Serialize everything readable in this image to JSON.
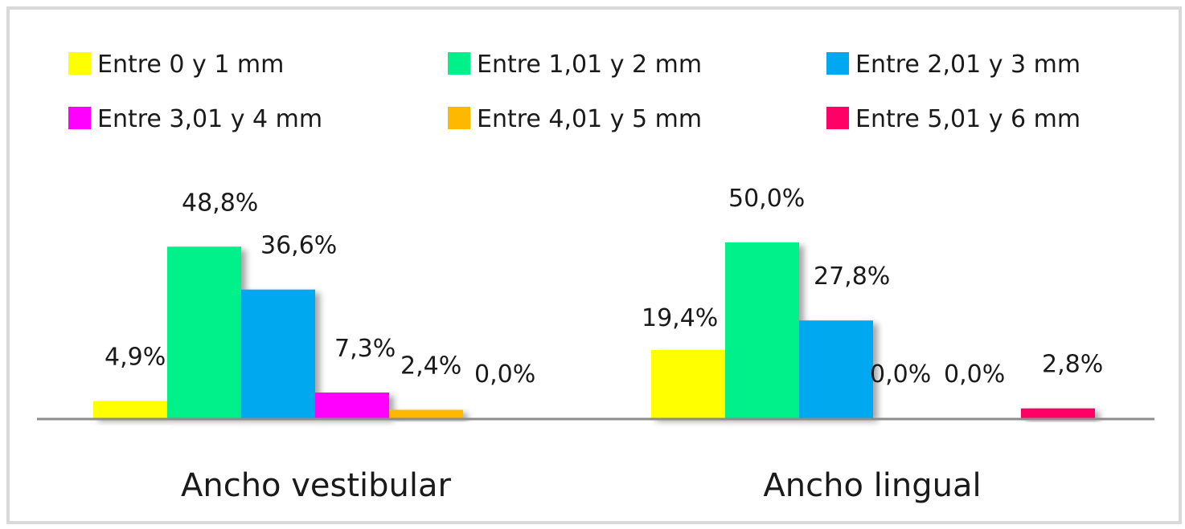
{
  "chart_data": {
    "type": "bar",
    "title": "",
    "xlabel": "",
    "ylabel": "",
    "ylim": [
      0,
      60
    ],
    "grid": false,
    "legend_position": "top",
    "categories": [
      "Ancho vestibular",
      "Ancho lingual"
    ],
    "series": [
      {
        "name": "Entre 0 y 1 mm",
        "color": "#ffff00",
        "values": [
          4.9,
          19.4
        ],
        "labels": [
          "4,9%",
          "19,4%"
        ]
      },
      {
        "name": "Entre 1,01 y 2 mm",
        "color": "#00f08a",
        "values": [
          48.8,
          50.0
        ],
        "labels": [
          "48,8%",
          "50,0%"
        ]
      },
      {
        "name": "Entre 2,01 y 3 mm",
        "color": "#00a8f0",
        "values": [
          36.6,
          27.8
        ],
        "labels": [
          "36,6%",
          "27,8%"
        ]
      },
      {
        "name": "Entre 3,01 y 4 mm",
        "color": "#ff00ff",
        "values": [
          7.3,
          0.0
        ],
        "labels": [
          "7,3%",
          "0,0%"
        ]
      },
      {
        "name": "Entre 4,01 y 5 mm",
        "color": "#ffb800",
        "values": [
          2.4,
          0.0
        ],
        "labels": [
          "2,4%",
          "0,0%"
        ]
      },
      {
        "name": "Entre 5,01 y 6 mm",
        "color": "#ff0066",
        "values": [
          0.0,
          2.8
        ],
        "labels": [
          "0,0%",
          "2,8%"
        ]
      }
    ],
    "axis_color": "#8c8c8c"
  }
}
